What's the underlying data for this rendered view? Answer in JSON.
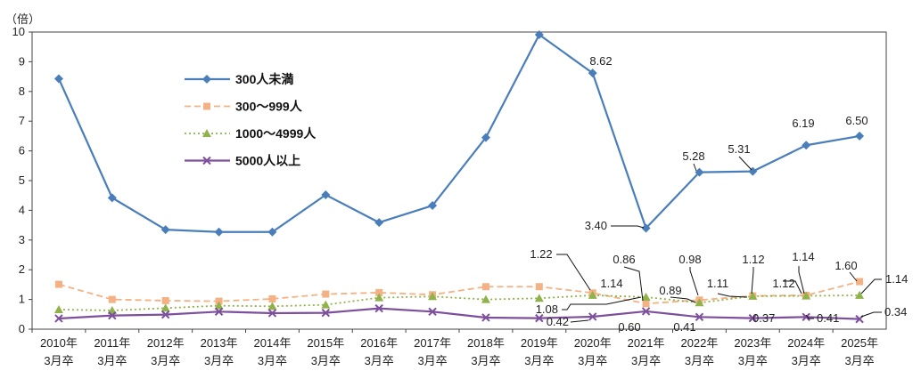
{
  "chart_data": {
    "type": "line",
    "unit_label": "（倍）",
    "categories": [
      [
        "2010年",
        "3月卒"
      ],
      [
        "2011年",
        "3月卒"
      ],
      [
        "2012年",
        "3月卒"
      ],
      [
        "2013年",
        "3月卒"
      ],
      [
        "2014年",
        "3月卒"
      ],
      [
        "2015年",
        "3月卒"
      ],
      [
        "2016年",
        "3月卒"
      ],
      [
        "2017年",
        "3月卒"
      ],
      [
        "2018年",
        "3月卒"
      ],
      [
        "2019年",
        "3月卒"
      ],
      [
        "2020年",
        "3月卒"
      ],
      [
        "2021年",
        "3月卒"
      ],
      [
        "2022年",
        "3月卒"
      ],
      [
        "2023年",
        "3月卒"
      ],
      [
        "2024年",
        "3月卒"
      ],
      [
        "2025年",
        "3月卒"
      ]
    ],
    "ylim": [
      0,
      10
    ],
    "yticks": [
      "0",
      "1",
      "2",
      "3",
      "4",
      "5",
      "6",
      "7",
      "8",
      "9",
      "10"
    ],
    "legend_position": "top-left",
    "series": [
      {
        "name": "300人未満",
        "color": "#4a7ebb",
        "marker": "diamond",
        "line": "solid",
        "values": [
          8.43,
          4.42,
          3.35,
          3.27,
          3.27,
          4.52,
          3.59,
          4.16,
          6.45,
          9.91,
          8.62,
          3.4,
          5.28,
          5.31,
          6.19,
          6.5
        ],
        "labels": [
          "",
          "",
          "",
          "",
          "",
          "",
          "",
          "",
          "",
          "",
          "8.62",
          "3.40",
          "5.28",
          "5.31",
          "6.19",
          "6.50"
        ]
      },
      {
        "name": "300〜999人",
        "color": "#f4b183",
        "marker": "square",
        "line": "dashed",
        "values": [
          1.51,
          1.0,
          0.96,
          0.94,
          1.02,
          1.18,
          1.23,
          1.16,
          1.43,
          1.43,
          1.22,
          0.86,
          0.98,
          1.12,
          1.14,
          1.6
        ],
        "labels": [
          "",
          "",
          "",
          "",
          "",
          "",
          "",
          "",
          "",
          "",
          "1.22",
          "0.86",
          "0.98",
          "1.12",
          "1.14",
          "1.60"
        ]
      },
      {
        "name": "1000〜4999人",
        "color": "#8fb34a",
        "marker": "triangle",
        "line": "dotted",
        "values": [
          0.66,
          0.63,
          0.71,
          0.79,
          0.77,
          0.82,
          1.06,
          1.1,
          1.0,
          1.04,
          1.14,
          1.08,
          0.89,
          1.11,
          1.12,
          1.14
        ],
        "labels": [
          "",
          "",
          "",
          "",
          "",
          "",
          "",
          "",
          "",
          "",
          "1.14",
          "1.08",
          "0.89",
          "1.11",
          "1.12",
          "1.14"
        ]
      },
      {
        "name": "5000人以上",
        "color": "#7d4f9c",
        "marker": "x",
        "line": "solid",
        "values": [
          0.36,
          0.46,
          0.49,
          0.59,
          0.54,
          0.55,
          0.7,
          0.59,
          0.39,
          0.37,
          0.42,
          0.6,
          0.41,
          0.37,
          0.41,
          0.34
        ],
        "labels": [
          "",
          "",
          "",
          "",
          "",
          "",
          "",
          "",
          "",
          "",
          "0.42",
          "0.60",
          "0.41",
          "0.37",
          "0.41",
          "0.34"
        ]
      }
    ]
  }
}
